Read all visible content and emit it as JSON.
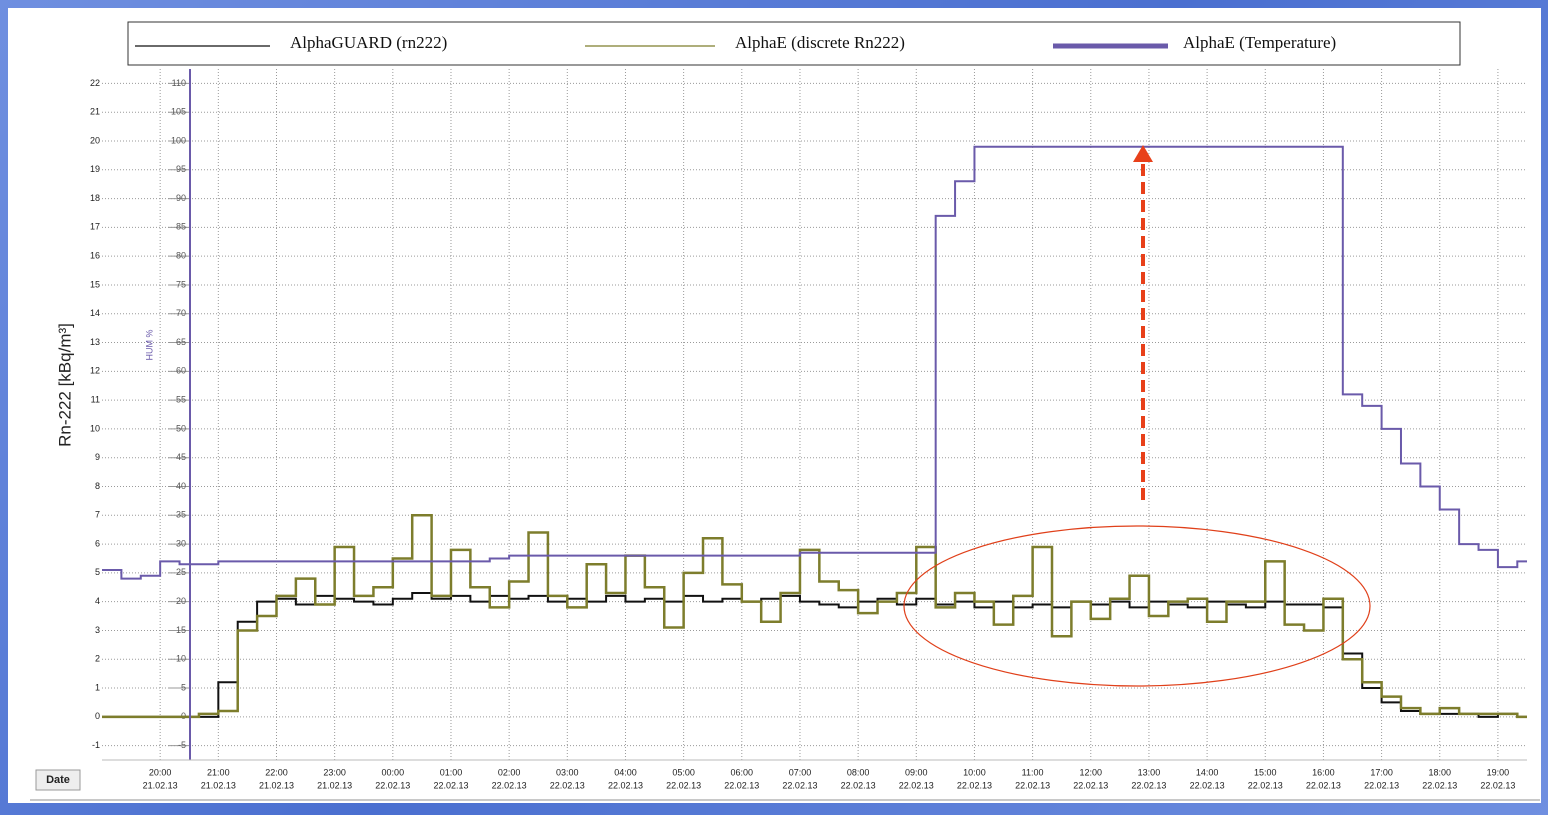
{
  "chart_data": {
    "type": "line",
    "step": true,
    "ylabel": "Rn-222  [kBq/m³]",
    "y2label": "HUM %",
    "xlabel": "Date",
    "ylim": [
      -1.5,
      22.5
    ],
    "yticks": [
      -1,
      0,
      1,
      2,
      3,
      4,
      5,
      6,
      7,
      8,
      9,
      10,
      11,
      12,
      13,
      14,
      15,
      16,
      17,
      18,
      19,
      20,
      21,
      22
    ],
    "y2lim": [
      -7.5,
      112.5
    ],
    "y2ticks": [
      -5,
      0,
      5,
      10,
      15,
      20,
      25,
      30,
      35,
      40,
      45,
      50,
      55,
      60,
      65,
      70,
      75,
      80,
      85,
      90,
      95,
      100,
      105,
      110
    ],
    "xlim": [
      "2013-02-21T19:00",
      "2013-02-22T19:30"
    ],
    "xticks": [
      {
        "value": "2013-02-21T20:00",
        "label": [
          "20:00",
          "21.02.13"
        ]
      },
      {
        "value": "2013-02-21T21:00",
        "label": [
          "21:00",
          "21.02.13"
        ]
      },
      {
        "value": "2013-02-21T22:00",
        "label": [
          "22:00",
          "21.02.13"
        ]
      },
      {
        "value": "2013-02-21T23:00",
        "label": [
          "23:00",
          "21.02.13"
        ]
      },
      {
        "value": "2013-02-22T00:00",
        "label": [
          "00:00",
          "22.02.13"
        ]
      },
      {
        "value": "2013-02-22T01:00",
        "label": [
          "01:00",
          "22.02.13"
        ]
      },
      {
        "value": "2013-02-22T02:00",
        "label": [
          "02:00",
          "22.02.13"
        ]
      },
      {
        "value": "2013-02-22T03:00",
        "label": [
          "03:00",
          "22.02.13"
        ]
      },
      {
        "value": "2013-02-22T04:00",
        "label": [
          "04:00",
          "22.02.13"
        ]
      },
      {
        "value": "2013-02-22T05:00",
        "label": [
          "05:00",
          "22.02.13"
        ]
      },
      {
        "value": "2013-02-22T06:00",
        "label": [
          "06:00",
          "22.02.13"
        ]
      },
      {
        "value": "2013-02-22T07:00",
        "label": [
          "07:00",
          "22.02.13"
        ]
      },
      {
        "value": "2013-02-22T08:00",
        "label": [
          "08:00",
          "22.02.13"
        ]
      },
      {
        "value": "2013-02-22T09:00",
        "label": [
          "09:00",
          "22.02.13"
        ]
      },
      {
        "value": "2013-02-22T10:00",
        "label": [
          "10:00",
          "22.02.13"
        ]
      },
      {
        "value": "2013-02-22T11:00",
        "label": [
          "11:00",
          "22.02.13"
        ]
      },
      {
        "value": "2013-02-22T12:00",
        "label": [
          "12:00",
          "22.02.13"
        ]
      },
      {
        "value": "2013-02-22T13:00",
        "label": [
          "13:00",
          "22.02.13"
        ]
      },
      {
        "value": "2013-02-22T14:00",
        "label": [
          "14:00",
          "22.02.13"
        ]
      },
      {
        "value": "2013-02-22T15:00",
        "label": [
          "15:00",
          "22.02.13"
        ]
      },
      {
        "value": "2013-02-22T16:00",
        "label": [
          "16:00",
          "22.02.13"
        ]
      },
      {
        "value": "2013-02-22T17:00",
        "label": [
          "17:00",
          "22.02.13"
        ]
      },
      {
        "value": "2013-02-22T18:00",
        "label": [
          "18:00",
          "22.02.13"
        ]
      },
      {
        "value": "2013-02-22T19:00",
        "label": [
          "19:00",
          "22.02.13"
        ]
      }
    ],
    "grid": true,
    "x": [
      "2013-02-21T19:00",
      "2013-02-21T19:20",
      "2013-02-21T19:40",
      "2013-02-21T20:00",
      "2013-02-21T20:20",
      "2013-02-21T20:40",
      "2013-02-21T21:00",
      "2013-02-21T21:20",
      "2013-02-21T21:40",
      "2013-02-21T22:00",
      "2013-02-21T22:20",
      "2013-02-21T22:40",
      "2013-02-21T23:00",
      "2013-02-21T23:20",
      "2013-02-21T23:40",
      "2013-02-22T00:00",
      "2013-02-22T00:20",
      "2013-02-22T00:40",
      "2013-02-22T01:00",
      "2013-02-22T01:20",
      "2013-02-22T01:40",
      "2013-02-22T02:00",
      "2013-02-22T02:20",
      "2013-02-22T02:40",
      "2013-02-22T03:00",
      "2013-02-22T03:20",
      "2013-02-22T03:40",
      "2013-02-22T04:00",
      "2013-02-22T04:20",
      "2013-02-22T04:40",
      "2013-02-22T05:00",
      "2013-02-22T05:20",
      "2013-02-22T05:40",
      "2013-02-22T06:00",
      "2013-02-22T06:20",
      "2013-02-22T06:40",
      "2013-02-22T07:00",
      "2013-02-22T07:20",
      "2013-02-22T07:40",
      "2013-02-22T08:00",
      "2013-02-22T08:20",
      "2013-02-22T08:40",
      "2013-02-22T09:00",
      "2013-02-22T09:20",
      "2013-02-22T09:40",
      "2013-02-22T10:00",
      "2013-02-22T10:20",
      "2013-02-22T10:40",
      "2013-02-22T11:00",
      "2013-02-22T11:20",
      "2013-02-22T11:40",
      "2013-02-22T12:00",
      "2013-02-22T12:20",
      "2013-02-22T12:40",
      "2013-02-22T13:00",
      "2013-02-22T13:20",
      "2013-02-22T13:40",
      "2013-02-22T14:00",
      "2013-02-22T14:20",
      "2013-02-22T14:40",
      "2013-02-22T15:00",
      "2013-02-22T15:20",
      "2013-02-22T15:40",
      "2013-02-22T16:00",
      "2013-02-22T16:20",
      "2013-02-22T16:40",
      "2013-02-22T17:00",
      "2013-02-22T17:20",
      "2013-02-22T17:40",
      "2013-02-22T18:00",
      "2013-02-22T18:20",
      "2013-02-22T18:40",
      "2013-02-22T19:00",
      "2013-02-22T19:20"
    ],
    "series": [
      {
        "name": "AlphaGUARD (rn222)",
        "color": "#111111",
        "width": 2,
        "values": [
          0,
          0,
          0,
          0,
          0,
          0,
          1.2,
          3.3,
          4.0,
          4.1,
          3.9,
          4.2,
          4.1,
          4.0,
          3.9,
          4.1,
          4.3,
          4.1,
          4.2,
          4.0,
          4.2,
          4.1,
          4.2,
          4.0,
          4.1,
          4.0,
          4.2,
          4.0,
          4.1,
          4.0,
          4.2,
          4.0,
          4.1,
          4.0,
          4.1,
          4.2,
          4.0,
          3.9,
          3.8,
          4.0,
          4.1,
          3.9,
          4.1,
          3.9,
          4.0,
          3.8,
          4.0,
          3.8,
          3.9,
          3.8,
          4.0,
          3.9,
          4.0,
          3.8,
          4.0,
          3.9,
          3.8,
          4.0,
          3.9,
          3.8,
          4.0,
          3.9,
          3.9,
          3.8,
          2.2,
          1.0,
          0.5,
          0.2,
          0.1,
          0.1,
          0.1,
          0,
          0.1,
          0
        ]
      },
      {
        "name": "AlphaE (discrete Rn222)",
        "color": "#7d7d2c",
        "width": 2.5,
        "values": [
          0,
          0,
          0,
          0,
          0,
          0.1,
          0.2,
          3.0,
          3.5,
          4.2,
          4.8,
          3.9,
          5.9,
          4.2,
          4.5,
          5.5,
          7.0,
          4.2,
          5.8,
          4.5,
          3.8,
          4.7,
          6.4,
          4.2,
          3.8,
          5.3,
          4.3,
          5.6,
          4.5,
          3.1,
          5.0,
          6.2,
          4.6,
          4.0,
          3.3,
          4.3,
          5.8,
          4.7,
          4.4,
          3.6,
          4.0,
          4.3,
          5.9,
          3.8,
          4.3,
          4.0,
          3.2,
          4.2,
          5.9,
          2.8,
          4.0,
          3.4,
          4.1,
          4.9,
          3.5,
          4.0,
          4.1,
          3.3,
          4.0,
          4.0,
          5.4,
          3.2,
          3.0,
          4.1,
          2.0,
          1.2,
          0.7,
          0.3,
          0.1,
          0.3,
          0.1,
          0.1,
          0.1,
          0
        ]
      },
      {
        "name": "AlphaE (Temperature)",
        "color": "#6a5aaa",
        "width": 2,
        "axis": "y2",
        "values": [
          25.5,
          24,
          24.5,
          27,
          26.5,
          26.5,
          27,
          27,
          27,
          27,
          27,
          27,
          27,
          27,
          27,
          27,
          27,
          27,
          27,
          27,
          27.5,
          28,
          28,
          28,
          28,
          28,
          28,
          28,
          28,
          28,
          28,
          28,
          28,
          28,
          28,
          28,
          28.5,
          28.5,
          28.5,
          28.5,
          28.5,
          28.5,
          28.5,
          87,
          93,
          99,
          99,
          99,
          99,
          99,
          99,
          99,
          99,
          99,
          99,
          99,
          99,
          99,
          99,
          99,
          99,
          99,
          99,
          99,
          56,
          54,
          50,
          44,
          40,
          36,
          30,
          29,
          26,
          27
        ]
      }
    ]
  }
}
